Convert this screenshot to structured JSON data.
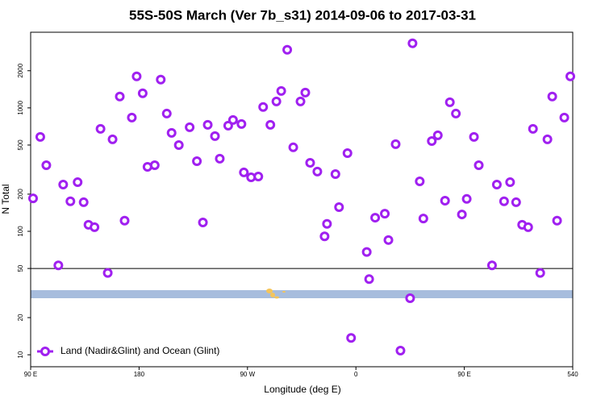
{
  "chart_data": {
    "type": "scatter",
    "title": "55S-50S March (Ver 7b_s31)   2014-09-06 to 2017-03-31",
    "x_label": "Longitude (deg E)",
    "y_label": "N Total",
    "ylog": true,
    "hline": 50,
    "legend": "bottom-left",
    "xlim": [
      90,
      540
    ],
    "ylim": [
      8,
      4100
    ],
    "xticks": [
      {
        "value": 90,
        "label": "90 E"
      },
      180,
      {
        "value": 270,
        "label": "90 W"
      },
      {
        "value": 360,
        "label": "0"
      },
      {
        "value": 450,
        "label": "90 E"
      },
      540
    ],
    "yticks": [
      10,
      20,
      50,
      100,
      200,
      500,
      1000,
      2000
    ],
    "series": [
      {
        "name": "Land (Nadir&Glint) and Ocean (Glint)",
        "color": "#a020f0",
        "x": [
          92,
          98,
          103,
          113,
          117,
          123,
          129,
          134,
          138,
          143,
          148,
          154,
          158,
          164,
          168,
          174,
          178,
          183,
          187,
          193,
          198,
          203,
          207,
          213,
          222,
          228,
          233,
          237,
          243,
          247,
          254,
          258,
          265,
          267,
          273,
          279,
          283,
          289,
          294,
          298,
          303,
          308,
          314,
          318,
          322,
          328,
          334,
          336,
          343,
          346,
          353,
          356,
          369,
          371,
          376,
          384,
          387,
          393,
          397,
          405,
          407,
          413,
          416,
          423,
          428,
          434,
          438,
          443,
          448,
          452,
          458,
          462,
          473,
          477,
          483,
          488,
          493,
          498,
          503,
          507,
          513,
          519,
          523,
          527,
          533,
          538
        ],
        "values": [
          185,
          582,
          343,
          53,
          239,
          175,
          250,
          172,
          113,
          108,
          676,
          46,
          556,
          1236,
          122,
          835,
          1800,
          1312,
          333,
          343,
          1694,
          899,
          627,
          500,
          697,
          370,
          118,
          729,
          591,
          388,
          718,
          798,
          740,
          300,
          274,
          278,
          1016,
          729,
          1128,
          1371,
          2958,
          479,
          1128,
          1331,
          359,
          305,
          91,
          115,
          291,
          157,
          430,
          13.7,
          68,
          41,
          129,
          139,
          85,
          508,
          10.8,
          28.7,
          3336,
          254,
          127,
          539,
          600,
          177,
          1111,
          899,
          137,
          183,
          582,
          343,
          53,
          239,
          175,
          250,
          172,
          113,
          108,
          676,
          46,
          556,
          1236,
          122,
          835,
          1800
        ]
      }
    ]
  }
}
